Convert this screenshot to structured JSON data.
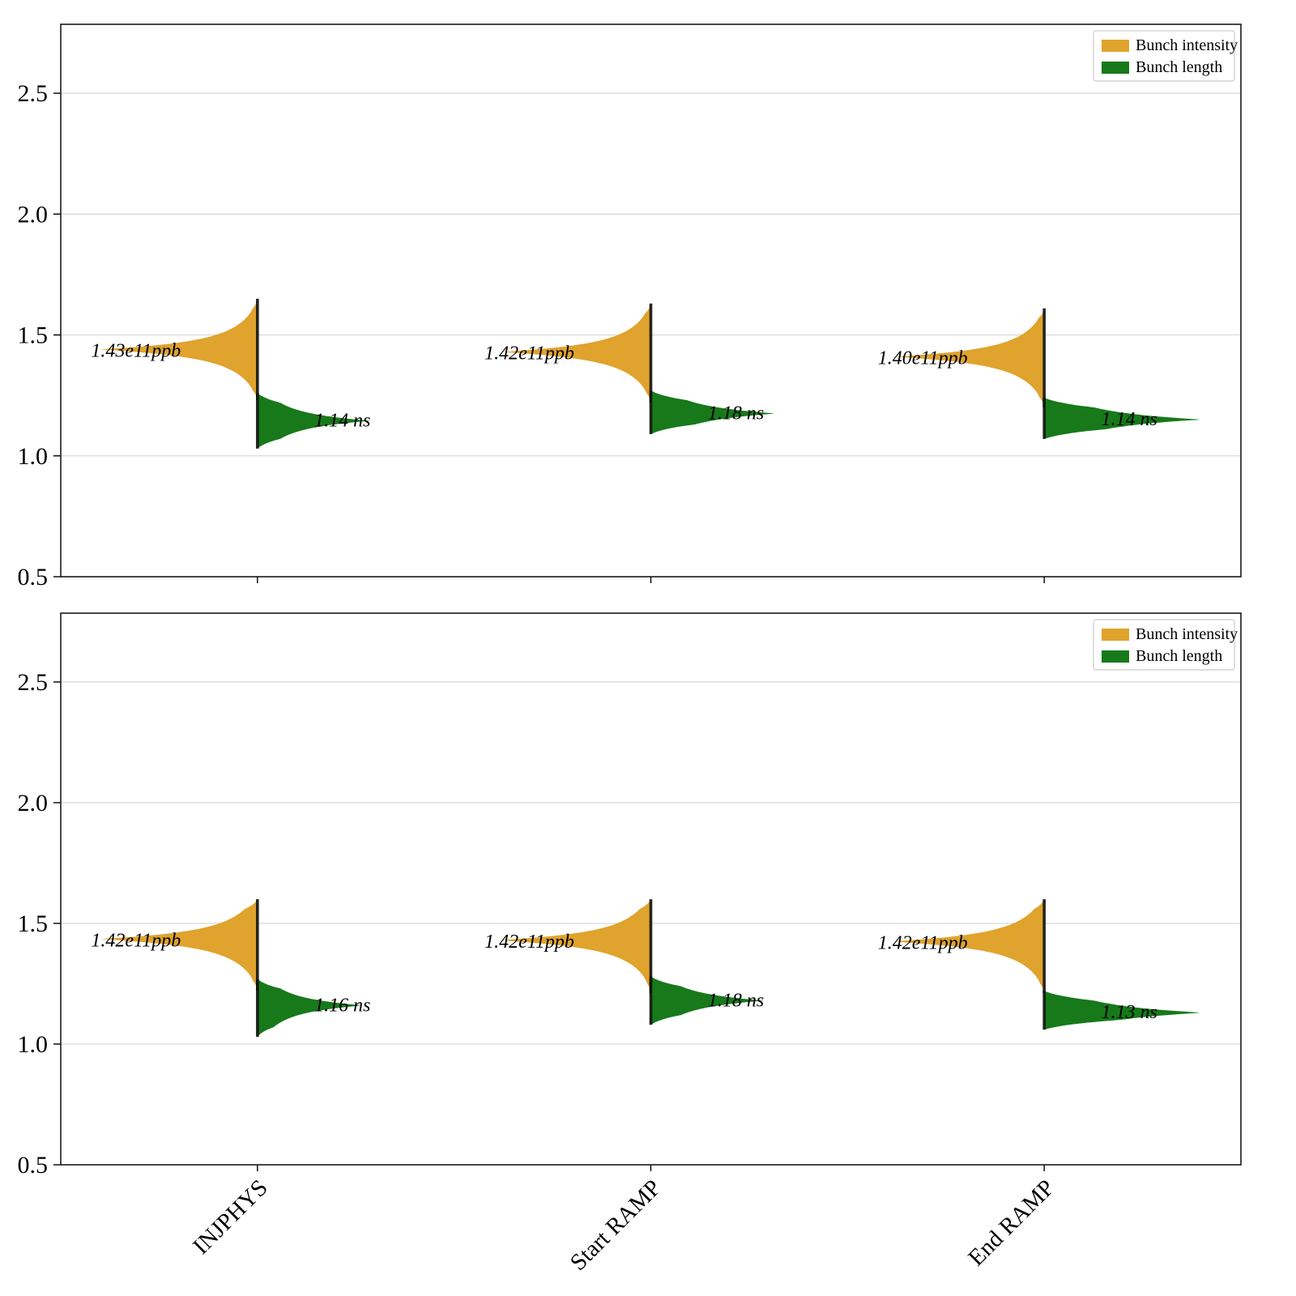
{
  "figure": {
    "background": "#ffffff"
  },
  "chart_data": [
    {
      "type": "violin",
      "title": "",
      "xlabel": "",
      "ylabel": "",
      "categories": [
        "INJPHYS",
        "Start RAMP",
        "End RAMP"
      ],
      "yticks": [
        0.5,
        1.0,
        1.5,
        2.0,
        2.5
      ],
      "ylim": [
        0.5,
        2.785
      ],
      "grid": true,
      "legend_position": "upper right",
      "show_x_labels": false,
      "series": [
        {
          "name": "Bunch intensity",
          "unit": "ppb",
          "side": "left",
          "color": "#DFA32E",
          "points": [
            {
              "category": "INJPHYS",
              "label": "1.43e11ppb",
              "mode": 1.44,
              "lo": 1.23,
              "hi": 1.65,
              "amp": 195
            },
            {
              "category": "Start RAMP",
              "label": "1.42e11ppb",
              "mode": 1.43,
              "lo": 1.22,
              "hi": 1.63,
              "amp": 185
            },
            {
              "category": "End RAMP",
              "label": "1.40e11ppb",
              "mode": 1.41,
              "lo": 1.2,
              "hi": 1.61,
              "amp": 185
            }
          ]
        },
        {
          "name": "Bunch length",
          "unit": "ns",
          "side": "right",
          "color": "#17791A",
          "points": [
            {
              "category": "INJPHYS",
              "label": "1.14 ns",
              "mode": 1.145,
              "lo": 1.03,
              "hi": 1.26,
              "amp": 140
            },
            {
              "category": "Start RAMP",
              "label": "1.18 ns",
              "mode": 1.175,
              "lo": 1.09,
              "hi": 1.27,
              "amp": 155
            },
            {
              "category": "End RAMP",
              "label": "1.14 ns",
              "mode": 1.15,
              "lo": 1.07,
              "hi": 1.24,
              "amp": 195
            }
          ]
        }
      ]
    },
    {
      "type": "violin",
      "title": "",
      "xlabel": "",
      "ylabel": "",
      "categories": [
        "INJPHYS",
        "Start RAMP",
        "End RAMP"
      ],
      "yticks": [
        0.5,
        1.0,
        1.5,
        2.0,
        2.5
      ],
      "ylim": [
        0.5,
        2.785
      ],
      "grid": true,
      "legend_position": "upper right",
      "show_x_labels": true,
      "series": [
        {
          "name": "Bunch intensity",
          "unit": "ppb",
          "side": "left",
          "color": "#DFA32E",
          "points": [
            {
              "category": "INJPHYS",
              "label": "1.42e11ppb",
              "mode": 1.435,
              "lo": 1.22,
              "hi": 1.6,
              "amp": 195
            },
            {
              "category": "Start RAMP",
              "label": "1.42e11ppb",
              "mode": 1.43,
              "lo": 1.21,
              "hi": 1.6,
              "amp": 190
            },
            {
              "category": "End RAMP",
              "label": "1.42e11ppb",
              "mode": 1.425,
              "lo": 1.21,
              "hi": 1.6,
              "amp": 190
            }
          ]
        },
        {
          "name": "Bunch length",
          "unit": "ns",
          "side": "right",
          "color": "#17791A",
          "points": [
            {
              "category": "INJPHYS",
              "label": "1.16 ns",
              "mode": 1.16,
              "lo": 1.03,
              "hi": 1.27,
              "amp": 130
            },
            {
              "category": "Start RAMP",
              "label": "1.18 ns",
              "mode": 1.18,
              "lo": 1.08,
              "hi": 1.28,
              "amp": 140
            },
            {
              "category": "End RAMP",
              "label": "1.13 ns",
              "mode": 1.13,
              "lo": 1.06,
              "hi": 1.22,
              "amp": 195
            }
          ]
        }
      ]
    }
  ]
}
